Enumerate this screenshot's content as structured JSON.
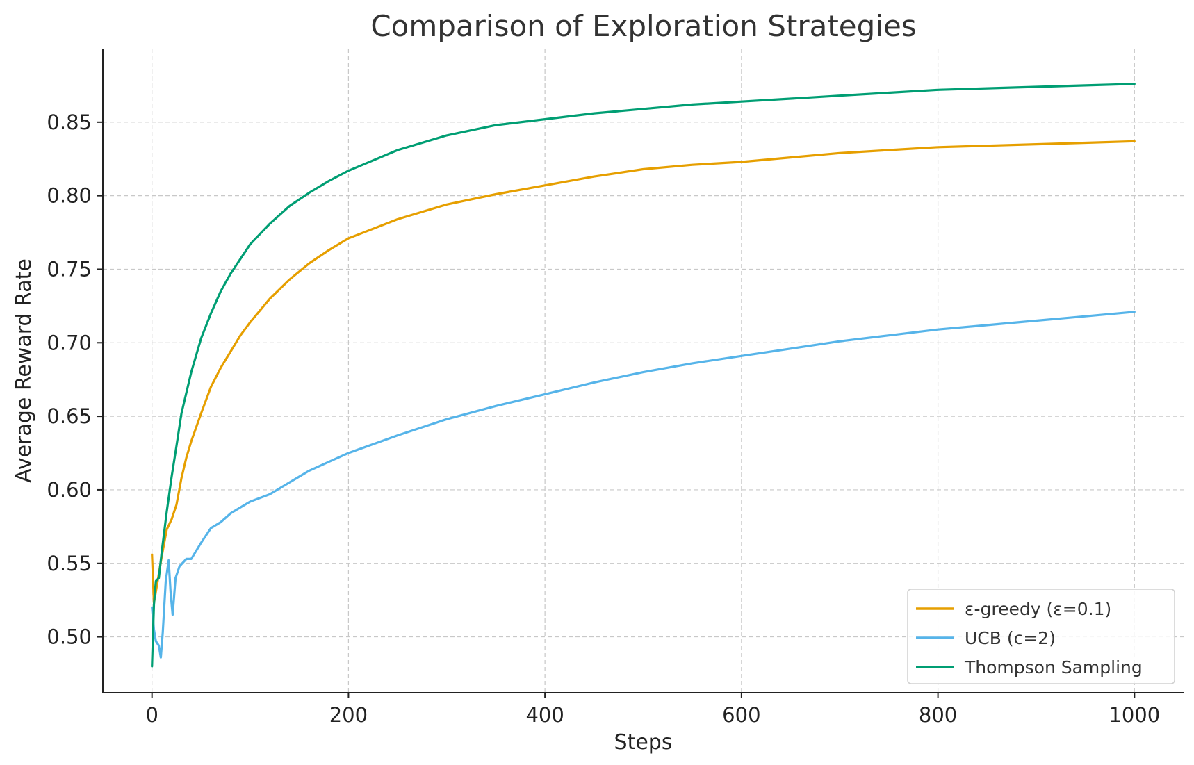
{
  "chart_data": {
    "type": "line",
    "title": "Comparison of Exploration Strategies",
    "xlabel": "Steps",
    "ylabel": "Average Reward Rate",
    "xlim": [
      -50,
      1050
    ],
    "ylim": [
      0.462,
      0.9
    ],
    "xticks": [
      0,
      200,
      400,
      600,
      800,
      1000
    ],
    "yticks": [
      0.5,
      0.55,
      0.6,
      0.65,
      0.7,
      0.75,
      0.8,
      0.85
    ],
    "ytick_labels": [
      "0.50",
      "0.55",
      "0.60",
      "0.65",
      "0.70",
      "0.75",
      "0.80",
      "0.85"
    ],
    "grid": true,
    "legend_position": "bottom-right",
    "series": [
      {
        "name": "ε-greedy (ε=0.1)",
        "color": "#E69F00",
        "points": [
          [
            0,
            0.556
          ],
          [
            2,
            0.523
          ],
          [
            5,
            0.535
          ],
          [
            10,
            0.555
          ],
          [
            15,
            0.573
          ],
          [
            20,
            0.58
          ],
          [
            25,
            0.59
          ],
          [
            30,
            0.608
          ],
          [
            35,
            0.622
          ],
          [
            40,
            0.633
          ],
          [
            50,
            0.652
          ],
          [
            60,
            0.67
          ],
          [
            70,
            0.683
          ],
          [
            80,
            0.694
          ],
          [
            90,
            0.705
          ],
          [
            100,
            0.714
          ],
          [
            120,
            0.73
          ],
          [
            140,
            0.743
          ],
          [
            160,
            0.754
          ],
          [
            180,
            0.763
          ],
          [
            200,
            0.771
          ],
          [
            250,
            0.784
          ],
          [
            300,
            0.794
          ],
          [
            350,
            0.801
          ],
          [
            400,
            0.807
          ],
          [
            450,
            0.813
          ],
          [
            500,
            0.818
          ],
          [
            550,
            0.821
          ],
          [
            600,
            0.823
          ],
          [
            650,
            0.826
          ],
          [
            700,
            0.829
          ],
          [
            750,
            0.831
          ],
          [
            800,
            0.833
          ],
          [
            850,
            0.834
          ],
          [
            900,
            0.835
          ],
          [
            950,
            0.836
          ],
          [
            1000,
            0.837
          ]
        ]
      },
      {
        "name": "UCB (c=2)",
        "color": "#56B4E9",
        "points": [
          [
            0,
            0.52
          ],
          [
            2,
            0.505
          ],
          [
            4,
            0.497
          ],
          [
            7,
            0.494
          ],
          [
            9,
            0.486
          ],
          [
            11,
            0.503
          ],
          [
            14,
            0.538
          ],
          [
            17,
            0.552
          ],
          [
            19,
            0.53
          ],
          [
            21,
            0.515
          ],
          [
            24,
            0.54
          ],
          [
            28,
            0.548
          ],
          [
            35,
            0.553
          ],
          [
            40,
            0.553
          ],
          [
            50,
            0.564
          ],
          [
            60,
            0.574
          ],
          [
            70,
            0.578
          ],
          [
            80,
            0.584
          ],
          [
            90,
            0.588
          ],
          [
            100,
            0.592
          ],
          [
            120,
            0.597
          ],
          [
            140,
            0.605
          ],
          [
            160,
            0.613
          ],
          [
            180,
            0.619
          ],
          [
            200,
            0.625
          ],
          [
            250,
            0.637
          ],
          [
            300,
            0.648
          ],
          [
            350,
            0.657
          ],
          [
            400,
            0.665
          ],
          [
            450,
            0.673
          ],
          [
            500,
            0.68
          ],
          [
            550,
            0.686
          ],
          [
            600,
            0.691
          ],
          [
            650,
            0.696
          ],
          [
            700,
            0.701
          ],
          [
            750,
            0.705
          ],
          [
            800,
            0.709
          ],
          [
            850,
            0.712
          ],
          [
            900,
            0.715
          ],
          [
            950,
            0.718
          ],
          [
            1000,
            0.721
          ]
        ]
      },
      {
        "name": "Thompson Sampling",
        "color": "#009E73",
        "points": [
          [
            0,
            0.48
          ],
          [
            2,
            0.522
          ],
          [
            4,
            0.538
          ],
          [
            7,
            0.54
          ],
          [
            10,
            0.558
          ],
          [
            15,
            0.585
          ],
          [
            20,
            0.609
          ],
          [
            25,
            0.63
          ],
          [
            30,
            0.652
          ],
          [
            40,
            0.68
          ],
          [
            50,
            0.703
          ],
          [
            60,
            0.72
          ],
          [
            70,
            0.735
          ],
          [
            80,
            0.747
          ],
          [
            90,
            0.757
          ],
          [
            100,
            0.767
          ],
          [
            120,
            0.781
          ],
          [
            140,
            0.793
          ],
          [
            160,
            0.802
          ],
          [
            180,
            0.81
          ],
          [
            200,
            0.817
          ],
          [
            250,
            0.831
          ],
          [
            300,
            0.841
          ],
          [
            350,
            0.848
          ],
          [
            400,
            0.852
          ],
          [
            450,
            0.856
          ],
          [
            500,
            0.859
          ],
          [
            550,
            0.862
          ],
          [
            600,
            0.864
          ],
          [
            650,
            0.866
          ],
          [
            700,
            0.868
          ],
          [
            750,
            0.87
          ],
          [
            800,
            0.872
          ],
          [
            850,
            0.873
          ],
          [
            900,
            0.874
          ],
          [
            950,
            0.875
          ],
          [
            1000,
            0.876
          ]
        ]
      }
    ]
  }
}
